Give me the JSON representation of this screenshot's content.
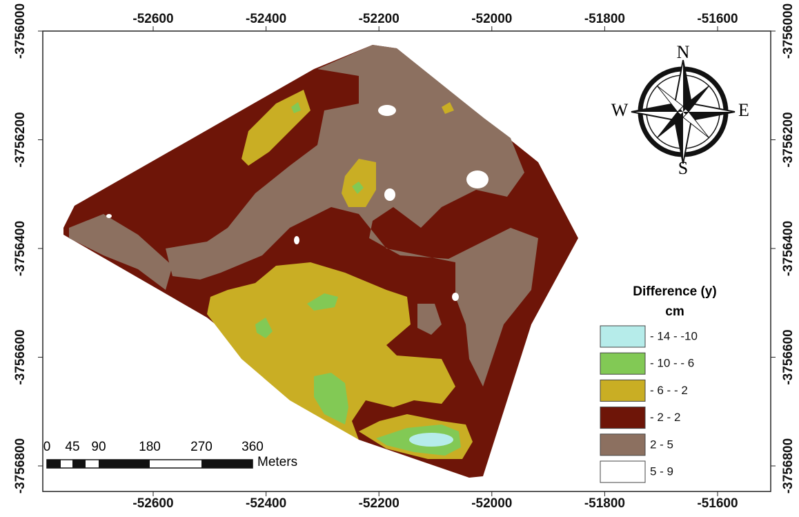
{
  "map": {
    "x_tick_labels": [
      "-52600",
      "-52400",
      "-52200",
      "-52000",
      "-51800",
      "-51600"
    ],
    "y_tick_labels": [
      "-3756000",
      "-3756200",
      "-3756400",
      "-3756600",
      "-3756800"
    ],
    "compass": {
      "north": "N",
      "south": "S",
      "west": "W",
      "east": "E"
    },
    "legend": {
      "title": "Difference (y)",
      "unit": "cm",
      "items": [
        {
          "label": "- 14   -  -10",
          "color": "#b6ecea"
        },
        {
          "label": "- 10   -  - 6",
          "color": "#82c955"
        },
        {
          "label": "-  6   -  - 2",
          "color": "#c9ae24"
        },
        {
          "label": "- 2   -   2",
          "color": "#6e1508"
        },
        {
          "label": "2   -   5",
          "color": "#8c7060"
        },
        {
          "label": "5   -   9",
          "color": "#ffffff"
        }
      ]
    },
    "scale_bar": {
      "labels": [
        "0",
        "45",
        "90",
        "180",
        "270",
        "360"
      ],
      "unit": "Meters"
    }
  }
}
